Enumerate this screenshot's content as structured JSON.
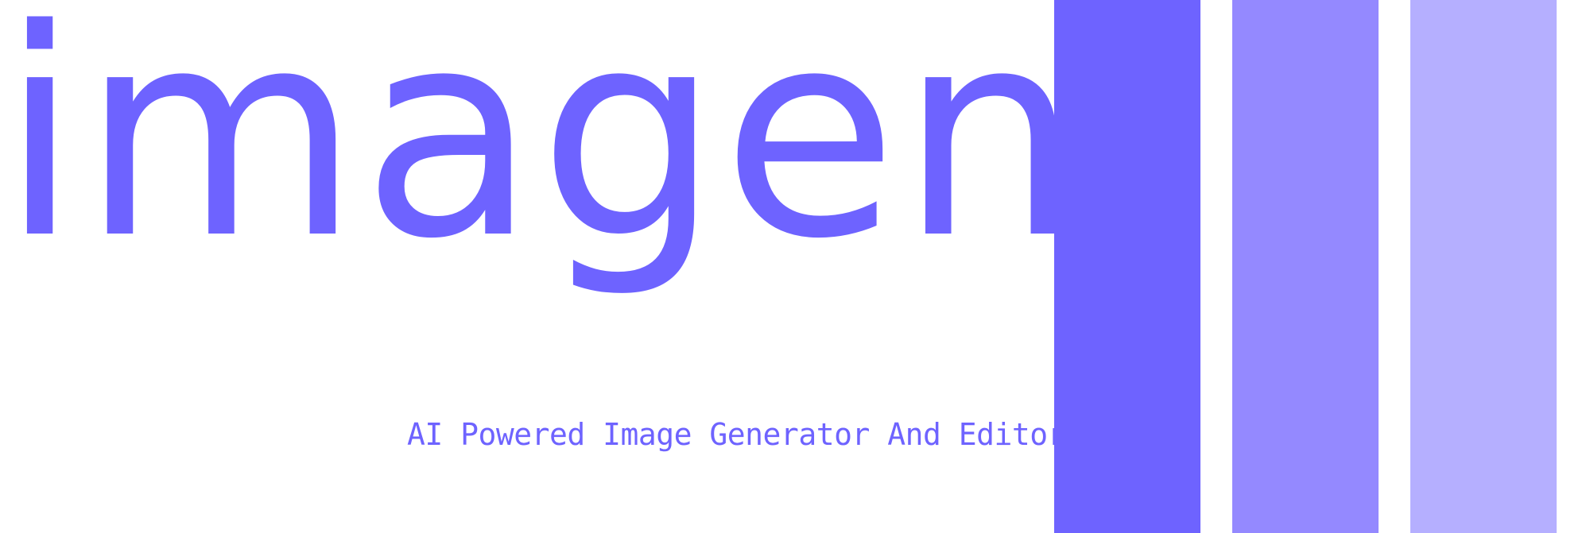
{
  "brand": {
    "name": "imagen",
    "tagline": "AI Powered Image Generator And Editor"
  },
  "colors": {
    "text": "#6e63ff",
    "bar_1": "#6e63ff",
    "bar_2": "#9489ff",
    "bar_3": "#b5afff",
    "background": "#ffffff"
  }
}
